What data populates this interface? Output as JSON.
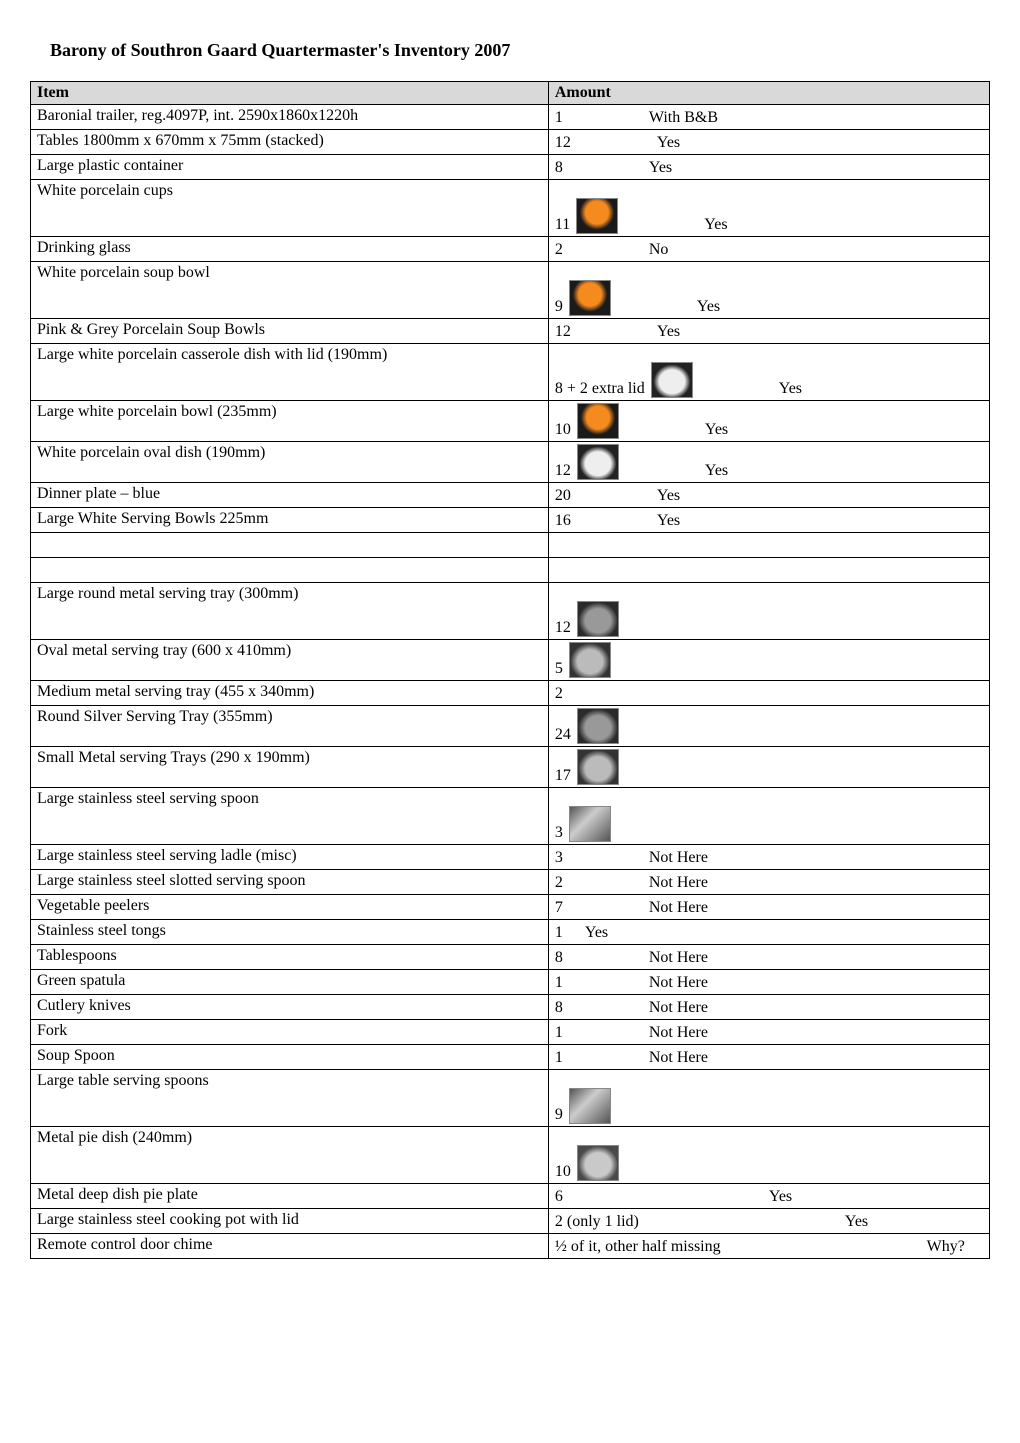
{
  "title": "Barony of Southron Gaard Quartermaster's Inventory 2007",
  "columns": [
    "Item",
    "Amount"
  ],
  "rows": [
    {
      "item": "Baronial trailer, reg.4097P, int. 2590x1860x1220h",
      "amount": "1",
      "status": "With B&B"
    },
    {
      "item": "Tables 1800mm x 670mm x 75mm (stacked)",
      "amount": "12",
      "status": "Yes"
    },
    {
      "item": "Large plastic container",
      "amount": "8",
      "status": "Yes"
    },
    {
      "item": "White porcelain cups",
      "amount": "11",
      "status": "Yes",
      "thumb": "orange",
      "tall": true
    },
    {
      "item": "Drinking glass",
      "amount": "2",
      "status": "No"
    },
    {
      "item": "White porcelain soup bowl",
      "amount": "9",
      "status": "Yes",
      "thumb": "orange",
      "tall": true
    },
    {
      "item": "Pink & Grey Porcelain Soup Bowls",
      "amount": "12",
      "status": "Yes"
    },
    {
      "item": "Large white porcelain casserole dish with lid (190mm)",
      "amount": "8 + 2 extra lid",
      "status": "Yes",
      "thumb": "white",
      "tall": true
    },
    {
      "item": "Large white porcelain bowl (235mm)",
      "amount": "10",
      "status": "Yes",
      "thumb": "orange"
    },
    {
      "item": "White porcelain oval dish (190mm)",
      "amount": "12",
      "status": "Yes",
      "thumb": "white"
    },
    {
      "item": "Dinner plate – blue",
      "amount": "20",
      "status": "Yes"
    },
    {
      "item": "Large White Serving Bowls 225mm",
      "amount": "16",
      "status": "Yes"
    },
    {
      "item": "",
      "amount": "",
      "status": ""
    },
    {
      "item": "",
      "amount": "",
      "status": ""
    },
    {
      "item": "Large round metal serving tray (300mm)",
      "amount": "12",
      "status": "",
      "thumb": "grey",
      "tall": true
    },
    {
      "item": "Oval metal serving tray (600 x 410mm)",
      "amount": "5",
      "status": "",
      "thumb": "metal"
    },
    {
      "item": "Medium metal serving tray (455 x 340mm)",
      "amount": "2",
      "status": ""
    },
    {
      "item": "Round Silver Serving Tray (355mm)",
      "amount": "24",
      "status": "",
      "thumb": "grey"
    },
    {
      "item": "Small Metal serving Trays (290 x 190mm)",
      "amount": "17",
      "status": "",
      "thumb": "metal"
    },
    {
      "item": "Large stainless steel serving spoon",
      "amount": "3",
      "status": "",
      "thumb": "spoon",
      "tall": true
    },
    {
      "item": "Large stainless steel serving ladle (misc)",
      "amount": "3",
      "status": "Not Here"
    },
    {
      "item": "Large stainless steel slotted serving spoon",
      "amount": "2",
      "status": "Not Here"
    },
    {
      "item": "Vegetable peelers",
      "amount": "7",
      "status": "Not Here"
    },
    {
      "item": "Stainless steel tongs",
      "amount": "1",
      "status": "Yes",
      "statusNear": true
    },
    {
      "item": "Tablespoons",
      "amount": "8",
      "status": "Not Here"
    },
    {
      "item": "Green spatula",
      "amount": "1",
      "status": "Not Here"
    },
    {
      "item": "Cutlery knives",
      "amount": "8",
      "status": "Not Here"
    },
    {
      "item": "Fork",
      "amount": "1",
      "status": "Not Here"
    },
    {
      "item": "Soup Spoon",
      "amount": "1",
      "status": "Not Here"
    },
    {
      "item": "Large table serving spoons",
      "amount": "9",
      "status": "",
      "thumb": "spoon",
      "tall": true
    },
    {
      "item": "Metal pie dish (240mm)",
      "amount": "10",
      "status": "",
      "thumb": "dish",
      "tall": true
    },
    {
      "item": "Metal deep dish pie plate",
      "amount": "6",
      "status": "Yes",
      "statusFar": true
    },
    {
      "item": "Large stainless steel cooking pot with lid",
      "amount": "2 (only 1 lid)",
      "status": "Yes",
      "statusFar": true
    },
    {
      "item": "Remote control door chime",
      "amount": "½ of it, other half missing",
      "status": "Why?",
      "statusFar": true
    }
  ]
}
